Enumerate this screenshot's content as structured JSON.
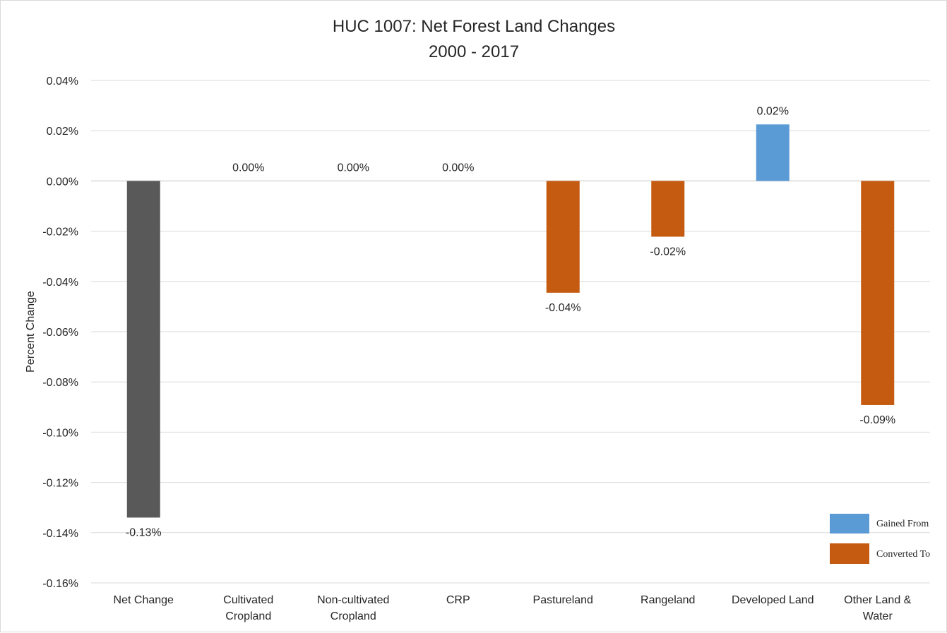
{
  "chart_data": {
    "type": "bar",
    "title": [
      "HUC 1007: Net Forest Land Changes",
      "2000 - 2017"
    ],
    "xlabel": "",
    "ylabel": "Percent Change",
    "ylim": [
      -0.16,
      0.04
    ],
    "yticks": [
      0.04,
      0.02,
      0.0,
      -0.02,
      -0.04,
      -0.06,
      -0.08,
      -0.1,
      -0.12,
      -0.14,
      -0.16
    ],
    "ytick_labels": [
      "0.04%",
      "0.02%",
      "0.00%",
      "-0.02%",
      "-0.04%",
      "-0.06%",
      "-0.08%",
      "-0.10%",
      "-0.12%",
      "-0.14%",
      "-0.16%"
    ],
    "grid": true,
    "legend_position": "bottom-right",
    "categories": [
      [
        "Net Change"
      ],
      [
        "Cultivated",
        "Cropland"
      ],
      [
        "Non-cultivated",
        "Cropland"
      ],
      [
        "CRP"
      ],
      [
        "Pastureland"
      ],
      [
        "Rangeland"
      ],
      [
        "Developed Land"
      ],
      [
        "Other Land &",
        "Water"
      ]
    ],
    "values": [
      -0.134,
      0.0,
      0.0,
      0.0,
      -0.0445,
      -0.0222,
      0.0225,
      -0.0892
    ],
    "data_labels": [
      "-0.13%",
      "0.00%",
      "0.00%",
      "0.00%",
      "-0.04%",
      "-0.02%",
      "0.02%",
      "-0.09%"
    ],
    "bar_types": [
      "net",
      "none",
      "none",
      "none",
      "converted",
      "converted",
      "gained",
      "converted"
    ],
    "legend": [
      {
        "key": "gained",
        "label": "Gained From"
      },
      {
        "key": "converted",
        "label": "Converted To"
      }
    ],
    "colors": {
      "net": "#595959",
      "gained": "#5b9bd5",
      "converted": "#c55a11"
    }
  }
}
